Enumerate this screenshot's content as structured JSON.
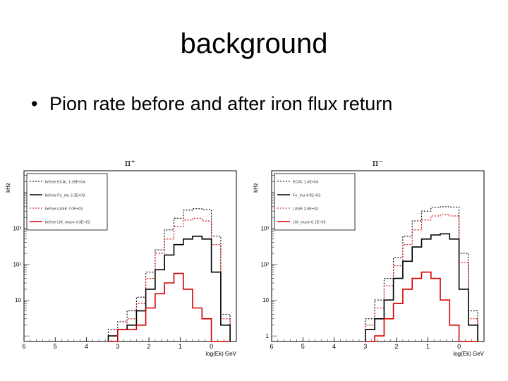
{
  "slide": {
    "title": "background",
    "bullet": "Pion rate before and after iron flux return"
  },
  "colors": {
    "black": "#000000",
    "red": "#d40000",
    "frame": "#000000"
  },
  "chart_data": [
    {
      "type": "line",
      "title": "π⁺",
      "ylabel": "kHz",
      "xlabel": "log(Ek) GeV",
      "x_reversed": true,
      "xlim": [
        6,
        -0.8
      ],
      "xticks": [
        "6",
        "5",
        "4",
        "3",
        "2",
        "1",
        "0"
      ],
      "y_log": true,
      "ytick_labels": [
        "10³",
        "10²",
        "10"
      ],
      "legend": {
        "placement": "top-left",
        "entries": [
          {
            "label": "before ECAL",
            "value": "1.39E+04",
            "style": "dotted",
            "color": "#000000"
          },
          {
            "label": "before Fe_mu",
            "value": "2.3E+03",
            "style": "solid",
            "color": "#000000"
          },
          {
            "label": "before LASE",
            "value": "7.0E+03",
            "style": "dotted",
            "color": "#d40000"
          },
          {
            "label": "before LM_muon",
            "value": "4.3E+02",
            "style": "solid",
            "color": "#d40000"
          }
        ]
      },
      "x": [
        3.15,
        2.85,
        2.55,
        2.25,
        1.95,
        1.65,
        1.35,
        1.05,
        0.75,
        0.45,
        0.15,
        -0.15,
        -0.45
      ],
      "series": [
        {
          "color": "#000000",
          "style": "dotted",
          "values": [
            1.5,
            2.5,
            5,
            12,
            60,
            250,
            900,
            1900,
            3200,
            3500,
            3300,
            600,
            4
          ]
        },
        {
          "color": "#d40000",
          "style": "dotted",
          "values": [
            1,
            1.5,
            3,
            8,
            40,
            200,
            500,
            1100,
            1700,
            1900,
            1600,
            350,
            3
          ]
        },
        {
          "color": "#000000",
          "style": "solid",
          "values": [
            1,
            1.5,
            2,
            5,
            20,
            70,
            180,
            350,
            500,
            600,
            500,
            60,
            2
          ]
        },
        {
          "color": "#d40000",
          "style": "solid",
          "values": [
            0,
            1.5,
            1.5,
            2,
            6,
            15,
            30,
            55,
            20,
            6,
            3,
            0,
            0
          ]
        }
      ]
    },
    {
      "type": "line",
      "title": "π⁻",
      "ylabel": "kHz",
      "xlabel": "log(Ek) GeV",
      "x_reversed": true,
      "xlim": [
        6,
        -0.8
      ],
      "xticks": [
        "6",
        "5",
        "4",
        "3",
        "2",
        "1",
        "0"
      ],
      "y_log": true,
      "ytick_labels": [
        "10³",
        "10²",
        "10",
        "1"
      ],
      "legend": {
        "placement": "top-left",
        "entries": [
          {
            "label": "ECAL",
            "value": "1.4E+04",
            "style": "dotted",
            "color": "#000000"
          },
          {
            "label": "Fe_mu",
            "value": "4.0E+03",
            "style": "solid",
            "color": "#000000"
          },
          {
            "label": "LASE",
            "value": "2.8E+03",
            "style": "dotted",
            "color": "#d40000"
          },
          {
            "label": "LM_muon",
            "value": "6.1E+02",
            "style": "solid",
            "color": "#d40000"
          }
        ]
      },
      "x": [
        2.85,
        2.55,
        2.25,
        1.95,
        1.65,
        1.35,
        1.05,
        0.75,
        0.45,
        0.15,
        -0.15,
        -0.45
      ],
      "series": [
        {
          "color": "#000000",
          "style": "dotted",
          "values": [
            3,
            10,
            40,
            150,
            600,
            1600,
            3000,
            3800,
            4000,
            3900,
            200,
            5
          ]
        },
        {
          "color": "#d40000",
          "style": "dotted",
          "values": [
            2,
            6,
            25,
            90,
            350,
            900,
            1700,
            2200,
            2400,
            2200,
            110,
            3
          ]
        },
        {
          "color": "#000000",
          "style": "solid",
          "values": [
            1.5,
            3,
            10,
            40,
            120,
            300,
            500,
            650,
            700,
            500,
            20,
            2
          ]
        },
        {
          "color": "#d40000",
          "style": "solid",
          "values": [
            0.5,
            1,
            3,
            8,
            20,
            40,
            60,
            40,
            10,
            2,
            0.5,
            0
          ]
        }
      ]
    }
  ]
}
